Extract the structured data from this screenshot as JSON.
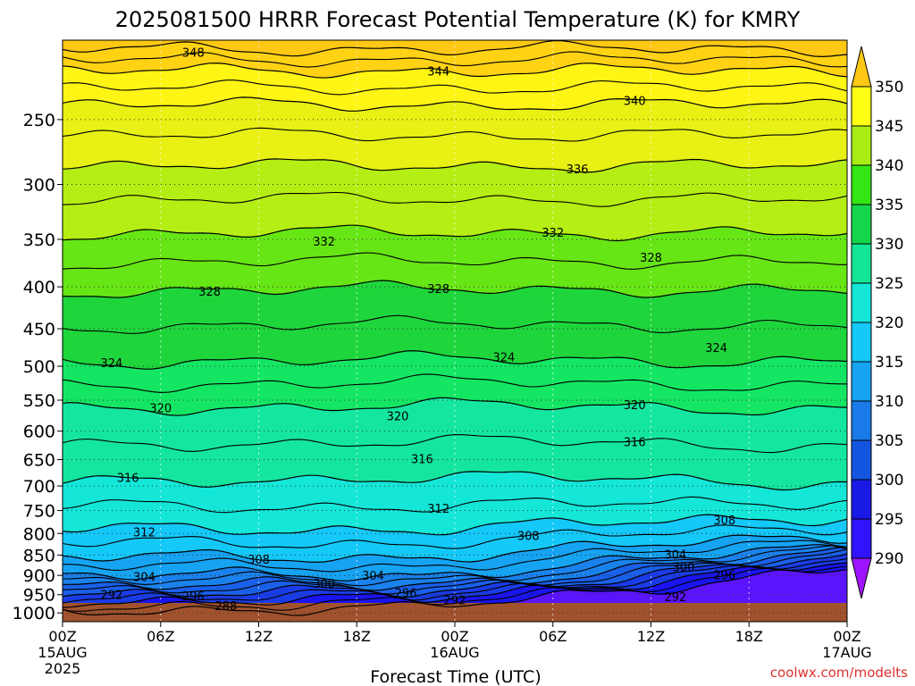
{
  "chart_data": {
    "type": "heatmap",
    "title": "2025081500 HRRR Forecast Potential Temperature (K) for KMRY",
    "xlabel": "Forecast Time (UTC)",
    "ylabel": "",
    "credit": "coolwx.com/modelts",
    "x_axis": {
      "range_hours": [
        0,
        48
      ],
      "ticks": [
        {
          "hour": 0,
          "label": "00Z",
          "sub": "15AUG",
          "sub2": "2025"
        },
        {
          "hour": 6,
          "label": "06Z",
          "sub": "",
          "sub2": ""
        },
        {
          "hour": 12,
          "label": "12Z",
          "sub": "",
          "sub2": ""
        },
        {
          "hour": 18,
          "label": "18Z",
          "sub": "",
          "sub2": ""
        },
        {
          "hour": 24,
          "label": "00Z",
          "sub": "16AUG",
          "sub2": ""
        },
        {
          "hour": 30,
          "label": "06Z",
          "sub": "",
          "sub2": ""
        },
        {
          "hour": 36,
          "label": "12Z",
          "sub": "",
          "sub2": ""
        },
        {
          "hour": 42,
          "label": "18Z",
          "sub": "",
          "sub2": ""
        },
        {
          "hour": 48,
          "label": "00Z",
          "sub": "17AUG",
          "sub2": ""
        }
      ]
    },
    "y_axis": {
      "scale": "log",
      "range": [
        1025,
        200
      ],
      "ticks": [
        250,
        300,
        350,
        400,
        450,
        500,
        550,
        600,
        650,
        700,
        750,
        800,
        850,
        900,
        950,
        1000
      ]
    },
    "grid": true,
    "colorbar": {
      "levels": [
        290,
        295,
        300,
        305,
        310,
        315,
        320,
        325,
        330,
        335,
        340,
        345,
        350
      ],
      "colors": [
        "#9e14ff",
        "#4a14ff",
        "#1a1ae6",
        "#1455e0",
        "#1a7ae8",
        "#16a3f2",
        "#14c8f8",
        "#14e6d8",
        "#14e696",
        "#14d64c",
        "#34e614",
        "#a8ec14",
        "#ffff14",
        "#fff01e",
        "#ffc814"
      ]
    },
    "contours": [
      {
        "value": 288,
        "base": 990
      },
      {
        "value": 292,
        "base": 965
      },
      {
        "value": 296,
        "base": 945
      },
      {
        "value": 300,
        "base": 925
      },
      {
        "value": 304,
        "base": 900
      },
      {
        "value": 308,
        "base": 855
      },
      {
        "value": 312,
        "base": 790
      },
      {
        "value": 316,
        "base": 695
      },
      {
        "value": 320,
        "base": 565
      },
      {
        "value": 324,
        "base": 495
      },
      {
        "value": 328,
        "base": 405
      },
      {
        "value": 332,
        "base": 345
      },
      {
        "value": 336,
        "base": 285
      },
      {
        "value": 340,
        "base": 240
      },
      {
        "value": 344,
        "base": 218
      },
      {
        "value": 348,
        "base": 205
      }
    ],
    "contour_labels": [
      {
        "text": "348",
        "hour": 8.0,
        "p": 207
      },
      {
        "text": "344",
        "hour": 23.0,
        "p": 218
      },
      {
        "text": "340",
        "hour": 35.0,
        "p": 237
      },
      {
        "text": "336",
        "hour": 31.5,
        "p": 287
      },
      {
        "text": "332",
        "hour": 16.0,
        "p": 352
      },
      {
        "text": "332",
        "hour": 30.0,
        "p": 343
      },
      {
        "text": "328",
        "hour": 9.0,
        "p": 405
      },
      {
        "text": "328",
        "hour": 23.0,
        "p": 402
      },
      {
        "text": "328",
        "hour": 36.0,
        "p": 368
      },
      {
        "text": "324",
        "hour": 3.0,
        "p": 495
      },
      {
        "text": "324",
        "hour": 27.0,
        "p": 487
      },
      {
        "text": "324",
        "hour": 40.0,
        "p": 474
      },
      {
        "text": "320",
        "hour": 6.0,
        "p": 562
      },
      {
        "text": "320",
        "hour": 20.5,
        "p": 575
      },
      {
        "text": "320",
        "hour": 35.0,
        "p": 557
      },
      {
        "text": "316",
        "hour": 4.0,
        "p": 683
      },
      {
        "text": "316",
        "hour": 22.0,
        "p": 648
      },
      {
        "text": "316",
        "hour": 35.0,
        "p": 618
      },
      {
        "text": "312",
        "hour": 5.0,
        "p": 796
      },
      {
        "text": "312",
        "hour": 23.0,
        "p": 745
      },
      {
        "text": "308",
        "hour": 12.0,
        "p": 860
      },
      {
        "text": "308",
        "hour": 28.5,
        "p": 804
      },
      {
        "text": "308",
        "hour": 40.5,
        "p": 770
      },
      {
        "text": "304",
        "hour": 5.0,
        "p": 903
      },
      {
        "text": "304",
        "hour": 19.0,
        "p": 900
      },
      {
        "text": "304",
        "hour": 37.5,
        "p": 848
      },
      {
        "text": "300",
        "hour": 16.0,
        "p": 920
      },
      {
        "text": "300",
        "hour": 38.0,
        "p": 878
      },
      {
        "text": "296",
        "hour": 8.0,
        "p": 953
      },
      {
        "text": "296",
        "hour": 21.0,
        "p": 945
      },
      {
        "text": "296",
        "hour": 40.5,
        "p": 898
      },
      {
        "text": "292",
        "hour": 3.0,
        "p": 950
      },
      {
        "text": "292",
        "hour": 24.0,
        "p": 964
      },
      {
        "text": "292",
        "hour": 37.5,
        "p": 955
      },
      {
        "text": "288",
        "hour": 10.0,
        "p": 980
      }
    ]
  }
}
